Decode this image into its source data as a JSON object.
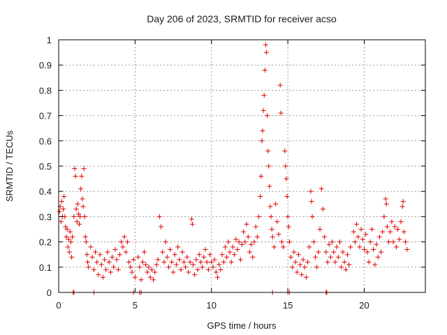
{
  "chart_data": {
    "type": "scatter",
    "title": "Day 206 of 2023, SRMTID for receiver acso",
    "xlabel": "GPS time / hours",
    "ylabel": "SRMTID / TECUs",
    "xlim": [
      0,
      24
    ],
    "ylim": [
      0,
      1
    ],
    "xticks": [
      0,
      5,
      10,
      15,
      20
    ],
    "xtick_labels": [
      "0",
      "5",
      "10",
      "15",
      "20"
    ],
    "yticks": [
      0,
      0.1,
      0.2,
      0.3,
      0.4,
      0.5,
      0.6,
      0.7,
      0.8,
      0.9,
      1
    ],
    "ytick_labels": [
      "0",
      "0.1",
      "0.2",
      "0.3",
      "0.4",
      "0.5",
      "0.6",
      "0.7",
      "0.8",
      "0.9",
      "1"
    ],
    "grid": true,
    "marker": "plus",
    "color": "#e00000",
    "series": [
      {
        "name": "SRMTID",
        "points": [
          [
            0.05,
            0.32
          ],
          [
            0.1,
            0.34
          ],
          [
            0.15,
            0.28
          ],
          [
            0.2,
            0.36
          ],
          [
            0.25,
            0.3
          ],
          [
            0.3,
            0.33
          ],
          [
            0.35,
            0.38
          ],
          [
            0.4,
            0.3
          ],
          [
            0.45,
            0.26
          ],
          [
            0.5,
            0.22
          ],
          [
            0.55,
            0.25
          ],
          [
            0.6,
            0.18
          ],
          [
            0.65,
            0.21
          ],
          [
            0.7,
            0.16
          ],
          [
            0.75,
            0.24
          ],
          [
            0.8,
            0.2
          ],
          [
            0.85,
            0.14
          ],
          [
            0.9,
            0.22
          ],
          [
            1.0,
            0.3
          ],
          [
            1.05,
            0.49
          ],
          [
            1.1,
            0.46
          ],
          [
            1.15,
            0.33
          ],
          [
            1.2,
            0.28
          ],
          [
            1.25,
            0.35
          ],
          [
            1.3,
            0.31
          ],
          [
            1.35,
            0.27
          ],
          [
            1.4,
            0.3
          ],
          [
            1.45,
            0.41
          ],
          [
            1.5,
            0.46
          ],
          [
            1.55,
            0.37
          ],
          [
            1.6,
            0.34
          ],
          [
            1.65,
            0.49
          ],
          [
            1.7,
            0.3
          ],
          [
            1.75,
            0.22
          ],
          [
            1.8,
            0.2
          ],
          [
            1.85,
            0.15
          ],
          [
            1.9,
            0.12
          ],
          [
            1.95,
            0.1
          ],
          [
            2.1,
            0.18
          ],
          [
            2.2,
            0.14
          ],
          [
            2.3,
            0.09
          ],
          [
            2.4,
            0.16
          ],
          [
            2.5,
            0.12
          ],
          [
            2.6,
            0.07
          ],
          [
            2.7,
            0.15
          ],
          [
            2.8,
            0.11
          ],
          [
            2.9,
            0.06
          ],
          [
            3.0,
            0.13
          ],
          [
            3.1,
            0.09
          ],
          [
            3.2,
            0.16
          ],
          [
            3.3,
            0.12
          ],
          [
            3.4,
            0.08
          ],
          [
            3.5,
            0.14
          ],
          [
            3.6,
            0.1
          ],
          [
            3.7,
            0.17
          ],
          [
            3.8,
            0.13
          ],
          [
            3.9,
            0.09
          ],
          [
            4.0,
            0.15
          ],
          [
            4.1,
            0.2
          ],
          [
            4.2,
            0.18
          ],
          [
            4.3,
            0.22
          ],
          [
            4.4,
            0.16
          ],
          [
            4.5,
            0.2
          ],
          [
            4.6,
            0.12
          ],
          [
            4.7,
            0.1
          ],
          [
            4.8,
            0.08
          ],
          [
            4.9,
            0.13
          ],
          [
            5.0,
            0.06
          ],
          [
            5.2,
            0.14
          ],
          [
            5.3,
            0.1
          ],
          [
            5.4,
            0.05
          ],
          [
            5.5,
            0.12
          ],
          [
            5.6,
            0.16
          ],
          [
            5.7,
            0.11
          ],
          [
            5.8,
            0.08
          ],
          [
            5.9,
            0.1
          ],
          [
            6.0,
            0.06
          ],
          [
            6.1,
            0.09
          ],
          [
            6.2,
            0.05
          ],
          [
            6.3,
            0.08
          ],
          [
            6.4,
            0.11
          ],
          [
            6.5,
            0.13
          ],
          [
            6.6,
            0.3
          ],
          [
            6.7,
            0.26
          ],
          [
            6.8,
            0.16
          ],
          [
            6.9,
            0.12
          ],
          [
            7.0,
            0.2
          ],
          [
            7.1,
            0.14
          ],
          [
            7.2,
            0.1
          ],
          [
            7.3,
            0.17
          ],
          [
            7.4,
            0.12
          ],
          [
            7.5,
            0.08
          ],
          [
            7.6,
            0.15
          ],
          [
            7.7,
            0.11
          ],
          [
            7.8,
            0.18
          ],
          [
            7.9,
            0.13
          ],
          [
            8.0,
            0.09
          ],
          [
            8.1,
            0.16
          ],
          [
            8.2,
            0.12
          ],
          [
            8.3,
            0.1
          ],
          [
            8.4,
            0.14
          ],
          [
            8.5,
            0.08
          ],
          [
            8.6,
            0.12
          ],
          [
            8.7,
            0.29
          ],
          [
            8.75,
            0.27
          ],
          [
            8.8,
            0.11
          ],
          [
            8.9,
            0.07
          ],
          [
            9.0,
            0.13
          ],
          [
            9.1,
            0.09
          ],
          [
            9.2,
            0.15
          ],
          [
            9.3,
            0.12
          ],
          [
            9.4,
            0.1
          ],
          [
            9.5,
            0.14
          ],
          [
            9.6,
            0.17
          ],
          [
            9.7,
            0.12
          ],
          [
            9.8,
            0.09
          ],
          [
            9.9,
            0.15
          ],
          [
            10.0,
            0.12
          ],
          [
            10.1,
            0.1
          ],
          [
            10.2,
            0.13
          ],
          [
            10.3,
            0.08
          ],
          [
            10.4,
            0.06
          ],
          [
            10.5,
            0.11
          ],
          [
            10.6,
            0.09
          ],
          [
            10.7,
            0.15
          ],
          [
            10.8,
            0.12
          ],
          [
            10.9,
            0.18
          ],
          [
            11.0,
            0.14
          ],
          [
            11.1,
            0.2
          ],
          [
            11.2,
            0.16
          ],
          [
            11.3,
            0.12
          ],
          [
            11.4,
            0.18
          ],
          [
            11.5,
            0.15
          ],
          [
            11.6,
            0.21
          ],
          [
            11.7,
            0.17
          ],
          [
            11.8,
            0.2
          ],
          [
            11.9,
            0.13
          ],
          [
            12.0,
            0.19
          ],
          [
            12.1,
            0.24
          ],
          [
            12.2,
            0.2
          ],
          [
            12.3,
            0.27
          ],
          [
            12.4,
            0.22
          ],
          [
            12.5,
            0.16
          ],
          [
            12.6,
            0.19
          ],
          [
            12.7,
            0.14
          ],
          [
            12.8,
            0.2
          ],
          [
            12.9,
            0.26
          ],
          [
            13.0,
            0.22
          ],
          [
            13.1,
            0.3
          ],
          [
            13.2,
            0.38
          ],
          [
            13.25,
            0.46
          ],
          [
            13.3,
            0.6
          ],
          [
            13.35,
            0.64
          ],
          [
            13.4,
            0.72
          ],
          [
            13.45,
            0.78
          ],
          [
            13.5,
            0.88
          ],
          [
            13.55,
            0.98
          ],
          [
            13.6,
            0.95
          ],
          [
            13.65,
            0.7
          ],
          [
            13.7,
            0.56
          ],
          [
            13.75,
            0.5
          ],
          [
            13.8,
            0.42
          ],
          [
            13.85,
            0.34
          ],
          [
            13.9,
            0.3
          ],
          [
            13.95,
            0.25
          ],
          [
            14.0,
            0.22
          ],
          [
            14.1,
            0.18
          ],
          [
            14.2,
            0.35
          ],
          [
            14.3,
            0.28
          ],
          [
            14.4,
            0.23
          ],
          [
            14.5,
            0.82
          ],
          [
            14.55,
            0.71
          ],
          [
            14.6,
            0.2
          ],
          [
            14.7,
            0.18
          ],
          [
            14.8,
            0.56
          ],
          [
            14.85,
            0.5
          ],
          [
            14.9,
            0.45
          ],
          [
            14.95,
            0.38
          ],
          [
            15.0,
            0.3
          ],
          [
            15.05,
            0.26
          ],
          [
            15.1,
            0.2
          ],
          [
            15.2,
            0.14
          ],
          [
            15.3,
            0.1
          ],
          [
            15.4,
            0.16
          ],
          [
            15.5,
            0.12
          ],
          [
            15.6,
            0.08
          ],
          [
            15.7,
            0.15
          ],
          [
            15.8,
            0.11
          ],
          [
            15.9,
            0.07
          ],
          [
            16.0,
            0.13
          ],
          [
            16.1,
            0.1
          ],
          [
            16.2,
            0.06
          ],
          [
            16.3,
            0.12
          ],
          [
            16.4,
            0.18
          ],
          [
            16.5,
            0.4
          ],
          [
            16.55,
            0.36
          ],
          [
            16.6,
            0.3
          ],
          [
            16.7,
            0.2
          ],
          [
            16.8,
            0.14
          ],
          [
            16.9,
            0.1
          ],
          [
            17.0,
            0.16
          ],
          [
            17.1,
            0.25
          ],
          [
            17.2,
            0.41
          ],
          [
            17.3,
            0.33
          ],
          [
            17.4,
            0.22
          ],
          [
            17.5,
            0.16
          ],
          [
            17.6,
            0.12
          ],
          [
            17.7,
            0.19
          ],
          [
            17.8,
            0.14
          ],
          [
            17.9,
            0.2
          ],
          [
            18.0,
            0.16
          ],
          [
            18.1,
            0.12
          ],
          [
            18.2,
            0.18
          ],
          [
            18.3,
            0.14
          ],
          [
            18.4,
            0.2
          ],
          [
            18.5,
            0.1
          ],
          [
            18.6,
            0.16
          ],
          [
            18.7,
            0.12
          ],
          [
            18.8,
            0.09
          ],
          [
            18.9,
            0.15
          ],
          [
            19.0,
            0.11
          ],
          [
            19.1,
            0.18
          ],
          [
            19.3,
            0.24
          ],
          [
            19.4,
            0.2
          ],
          [
            19.5,
            0.27
          ],
          [
            19.6,
            0.22
          ],
          [
            19.7,
            0.18
          ],
          [
            19.8,
            0.25
          ],
          [
            19.9,
            0.21
          ],
          [
            20.0,
            0.17
          ],
          [
            20.1,
            0.23
          ],
          [
            20.2,
            0.16
          ],
          [
            20.3,
            0.12
          ],
          [
            20.4,
            0.2
          ],
          [
            20.5,
            0.25
          ],
          [
            20.6,
            0.17
          ],
          [
            20.7,
            0.11
          ],
          [
            20.8,
            0.19
          ],
          [
            20.9,
            0.14
          ],
          [
            21.0,
            0.22
          ],
          [
            21.1,
            0.16
          ],
          [
            21.2,
            0.24
          ],
          [
            21.3,
            0.3
          ],
          [
            21.4,
            0.37
          ],
          [
            21.45,
            0.35
          ],
          [
            21.5,
            0.26
          ],
          [
            21.6,
            0.2
          ],
          [
            21.7,
            0.24
          ],
          [
            21.8,
            0.28
          ],
          [
            21.9,
            0.2
          ],
          [
            22.0,
            0.26
          ],
          [
            22.1,
            0.18
          ],
          [
            22.2,
            0.25
          ],
          [
            22.3,
            0.21
          ],
          [
            22.4,
            0.28
          ],
          [
            22.5,
            0.34
          ],
          [
            22.55,
            0.36
          ],
          [
            22.6,
            0.24
          ],
          [
            22.7,
            0.2
          ],
          [
            22.8,
            0.17
          ]
        ],
        "zero_points": [
          0.95,
          1.0,
          2.3,
          4.9,
          5.3,
          5.4,
          14.0,
          15.0,
          15.1,
          17.5,
          17.55
        ]
      }
    ]
  }
}
